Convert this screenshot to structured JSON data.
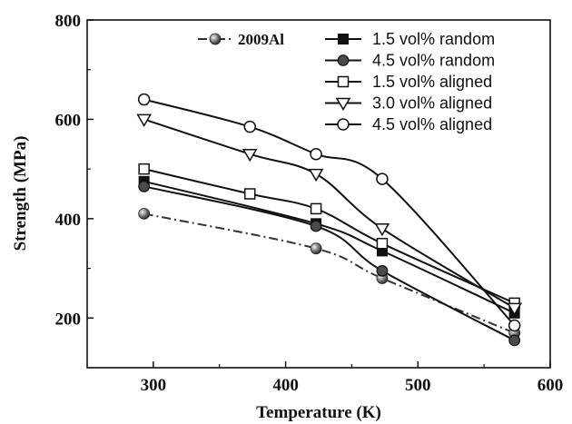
{
  "chart_data": {
    "type": "line",
    "xlabel": "Temperature (K)",
    "ylabel": "Strength (MPa)",
    "xlim": [
      250,
      600
    ],
    "ylim": [
      100,
      800
    ],
    "x_ticks": [
      300,
      400,
      500,
      600
    ],
    "y_ticks": [
      200,
      400,
      600,
      800
    ],
    "grid": false,
    "legend_position": "top-right",
    "series": [
      {
        "name": "2009Al",
        "marker": "sphere",
        "line": "dash-dot",
        "color": "#333333",
        "x": [
          293,
          423,
          473,
          573
        ],
        "y": [
          410,
          340,
          280,
          170
        ]
      },
      {
        "name": "1.5 vol% random",
        "marker": "filled-square",
        "line": "solid",
        "color": "#111111",
        "x": [
          293,
          423,
          473,
          573
        ],
        "y": [
          475,
          390,
          335,
          210
        ]
      },
      {
        "name": "4.5 vol% random",
        "marker": "filled-circle",
        "line": "solid",
        "color": "#111111",
        "x": [
          293,
          423,
          473,
          573
        ],
        "y": [
          465,
          385,
          295,
          155
        ]
      },
      {
        "name": "1.5 vol% aligned",
        "marker": "open-square",
        "line": "solid",
        "color": "#111111",
        "x": [
          293,
          373,
          423,
          473,
          573
        ],
        "y": [
          500,
          450,
          420,
          350,
          230
        ]
      },
      {
        "name": "3.0 vol% aligned",
        "marker": "open-triangle-down",
        "line": "solid",
        "color": "#111111",
        "x": [
          293,
          373,
          423,
          473,
          573
        ],
        "y": [
          600,
          530,
          490,
          380,
          220
        ]
      },
      {
        "name": "4.5 vol% aligned",
        "marker": "open-circle",
        "line": "solid",
        "color": "#111111",
        "x": [
          293,
          373,
          423,
          473,
          573
        ],
        "y": [
          640,
          585,
          530,
          480,
          185
        ]
      }
    ]
  }
}
